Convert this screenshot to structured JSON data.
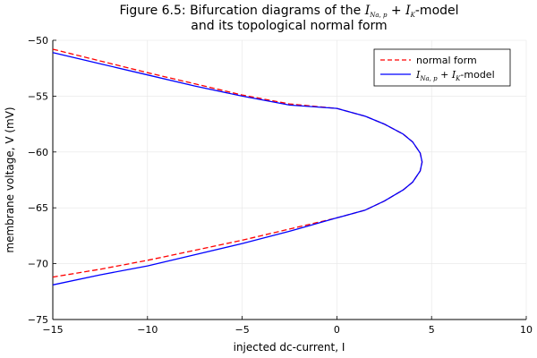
{
  "chart_data": {
    "type": "line",
    "title_parts": {
      "line1_prefix": "Figure 6.5: Bifurcation diagrams of the ",
      "line1_model": "I",
      "line1_sub1": "Na, p",
      "line1_plus": " + ",
      "line1_model2": "I",
      "line1_sub2": "K",
      "line1_suffix": "-model",
      "line2": "and its topological normal form"
    },
    "xlabel": "injected dc-current, I",
    "ylabel": "membrane voltage, V (mV)",
    "xlim": [
      -15,
      10
    ],
    "ylim": [
      -75,
      -50
    ],
    "xticks": [
      -15,
      -10,
      -5,
      0,
      5,
      10
    ],
    "yticks": [
      -75,
      -70,
      -65,
      -60,
      -55,
      -50
    ],
    "xtick_labels": [
      "−15",
      "−10",
      "−5",
      "0",
      "5",
      "10"
    ],
    "ytick_labels": [
      "−75",
      "−70",
      "−65",
      "−60",
      "−55",
      "−50"
    ],
    "grid": true,
    "legend_placement": "top-right",
    "series": [
      {
        "name": "normal form",
        "color": "#ff0000",
        "style": "dashed",
        "x": [
          -15,
          -12.5,
          -10,
          -7.5,
          -5,
          -2.5,
          0,
          1.5,
          2.5,
          3.5,
          4.0,
          4.4,
          4.5,
          4.4,
          4.0,
          3.5,
          2.5,
          1.5,
          0,
          -2.5,
          -5,
          -7.5,
          -10,
          -12.5,
          -15
        ],
        "y": [
          -50.8,
          -51.85,
          -52.9,
          -53.9,
          -54.9,
          -55.7,
          -56.1,
          -56.8,
          -57.5,
          -58.4,
          -59.1,
          -60.1,
          -60.9,
          -61.7,
          -62.7,
          -63.4,
          -64.4,
          -65.2,
          -65.9,
          -66.9,
          -67.9,
          -68.8,
          -69.7,
          -70.5,
          -71.2
        ]
      },
      {
        "name_parts": {
          "i1": "I",
          "s1": "Na, p",
          "plus": " + ",
          "i2": "I",
          "s2": "K",
          "suffix": "-model"
        },
        "color": "#0000ff",
        "style": "solid",
        "x": [
          -15,
          -12.5,
          -10,
          -7.5,
          -5,
          -2.5,
          0,
          1.5,
          2.5,
          3.5,
          4.0,
          4.4,
          4.5,
          4.4,
          4.0,
          3.5,
          2.5,
          1.5,
          0,
          -2.5,
          -5,
          -7.5,
          -10,
          -12.5,
          -15
        ],
        "y": [
          -51.1,
          -52.1,
          -53.1,
          -54.1,
          -55.0,
          -55.8,
          -56.1,
          -56.8,
          -57.5,
          -58.4,
          -59.1,
          -60.1,
          -60.9,
          -61.7,
          -62.7,
          -63.4,
          -64.4,
          -65.2,
          -65.9,
          -67.1,
          -68.2,
          -69.2,
          -70.2,
          -71.0,
          -71.9
        ]
      }
    ]
  }
}
